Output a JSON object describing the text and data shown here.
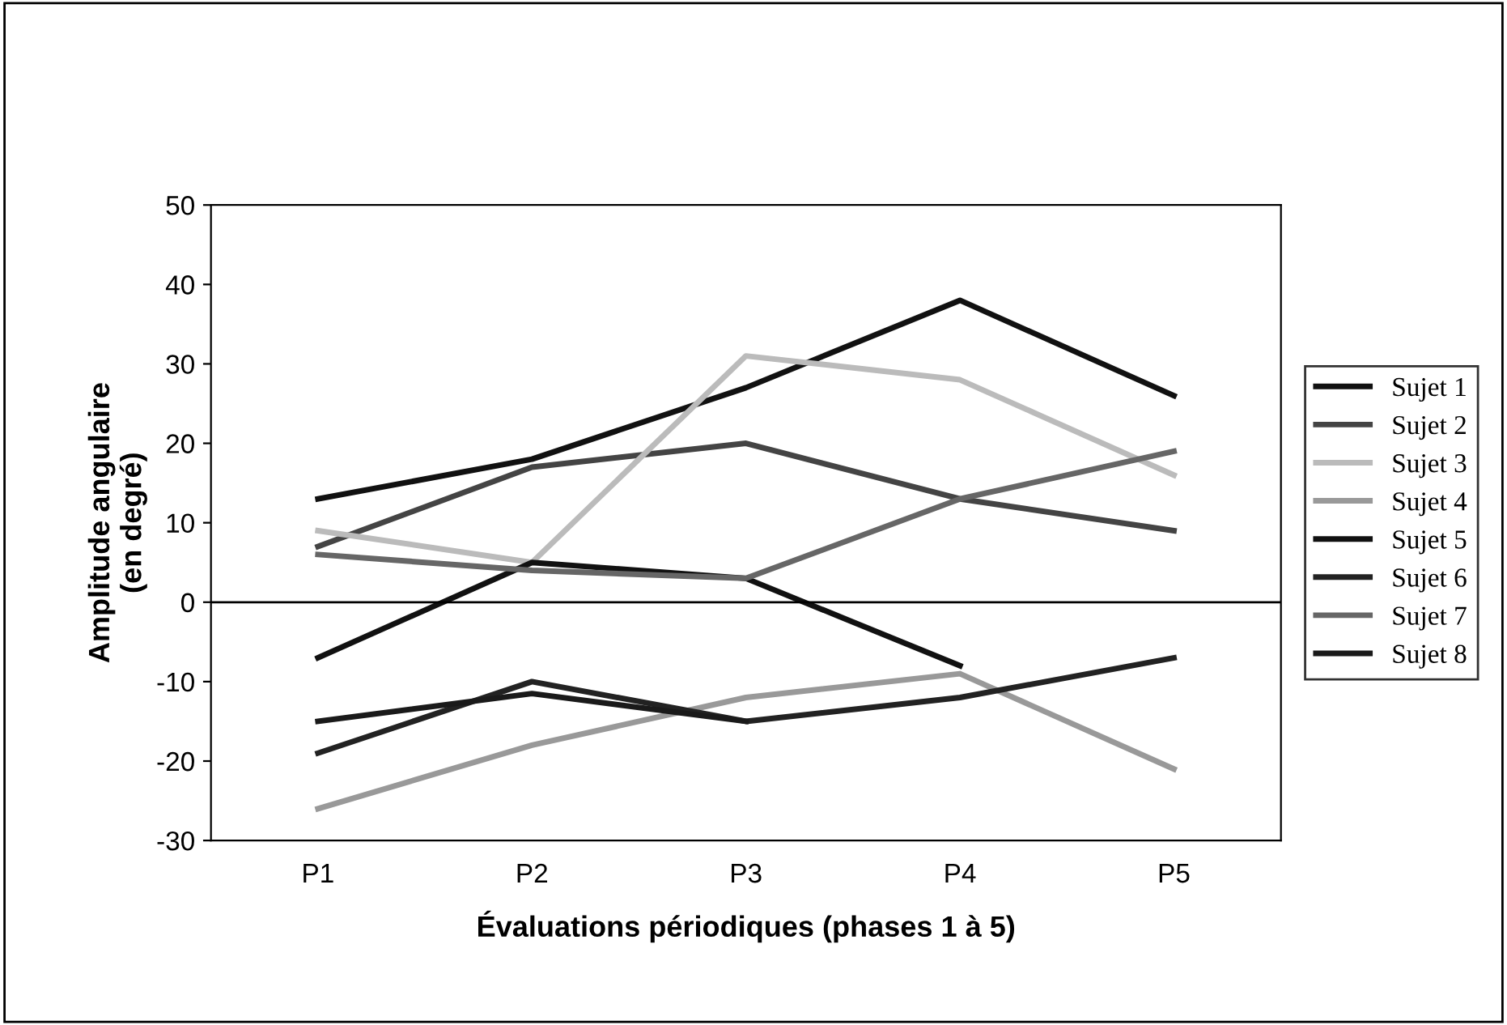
{
  "chart_data": {
    "type": "line",
    "xlabel": "Évaluations périodiques (phases 1 à 5)",
    "ylabel": "Amplitude angulaire\n(en degré)",
    "categories": [
      "P1",
      "P2",
      "P3",
      "P4",
      "P5"
    ],
    "series": [
      {
        "name": "Sujet 1",
        "color": "#111111",
        "values": [
          13,
          18,
          27,
          38,
          26
        ]
      },
      {
        "name": "Sujet 2",
        "color": "#444444",
        "values": [
          7,
          17,
          20,
          13,
          9
        ]
      },
      {
        "name": "Sujet 3",
        "color": "#bbbbbb",
        "values": [
          9,
          5,
          31,
          28,
          16
        ]
      },
      {
        "name": "Sujet 4",
        "color": "#999999",
        "values": [
          -26,
          -18,
          -12,
          -9,
          -21
        ]
      },
      {
        "name": "Sujet 5",
        "color": "#111111",
        "values": [
          -7,
          5,
          3,
          -8,
          null
        ]
      },
      {
        "name": "Sujet 6",
        "color": "#222222",
        "values": [
          -19,
          -10,
          -15,
          -12,
          -7
        ]
      },
      {
        "name": "Sujet 7",
        "color": "#666666",
        "values": [
          6,
          4,
          3,
          13,
          19
        ]
      },
      {
        "name": "Sujet 8",
        "color": "#1a1a1a",
        "values": [
          -15,
          -11.5,
          -15,
          null,
          null
        ]
      }
    ],
    "ylim": [
      -30,
      50
    ],
    "yticks": [
      -30,
      -20,
      -10,
      0,
      10,
      20,
      30,
      40,
      50
    ],
    "ref_lines": [
      {
        "axis": "y",
        "value": 0,
        "color": "#000000"
      }
    ],
    "grid": false,
    "legend": "right",
    "marker": "none",
    "line_style": "solid"
  }
}
